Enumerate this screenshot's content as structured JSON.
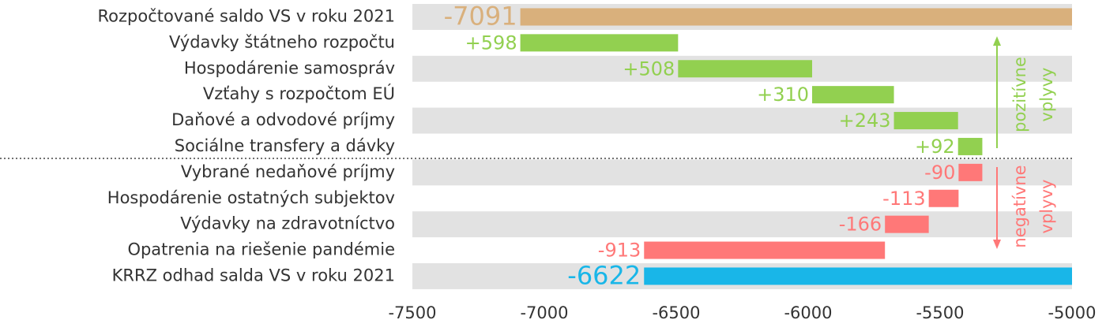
{
  "chart_data": {
    "type": "waterfall",
    "categories": [
      "Rozpočtované saldo VS v roku 2021",
      "Výdavky štátneho rozpočtu",
      "Hospodárenie samospráv",
      "Vzťahy s rozpočtom EÚ",
      "Daňové a odvodové príjmy",
      "Sociálne transfery a dávky",
      "Vybrané nedaňové príjmy",
      "Hospodárenie ostatných subjektov",
      "Výdavky na zdravotníctvo",
      "Opatrenia na riešenie pandémie",
      "KRRZ odhad salda VS v roku 2021"
    ],
    "values": [
      -7091,
      598,
      508,
      310,
      243,
      92,
      -90,
      -113,
      -166,
      -913,
      -6622
    ],
    "value_labels": [
      "-7091",
      "+598",
      "+508",
      "+310",
      "+243",
      "+92",
      "-90",
      "-113",
      "-166",
      "-913",
      "-6622"
    ],
    "colors": [
      "#d9b07c",
      "#92d050",
      "#92d050",
      "#92d050",
      "#92d050",
      "#92d050",
      "#ff7878",
      "#ff7878",
      "#ff7878",
      "#ff7878",
      "#19b6e8"
    ],
    "xlim": [
      -7500,
      -5000
    ],
    "xticks": [
      -7500,
      -7000,
      -6500,
      -6000,
      -5500,
      -5000
    ],
    "annotations": [
      {
        "text": "pozitívne",
        "color": "#92d050"
      },
      {
        "text": "vplyvy",
        "color": "#92d050"
      },
      {
        "text": "negatívne",
        "color": "#ff7878"
      },
      {
        "text": "vplyvy",
        "color": "#ff7878"
      }
    ]
  }
}
